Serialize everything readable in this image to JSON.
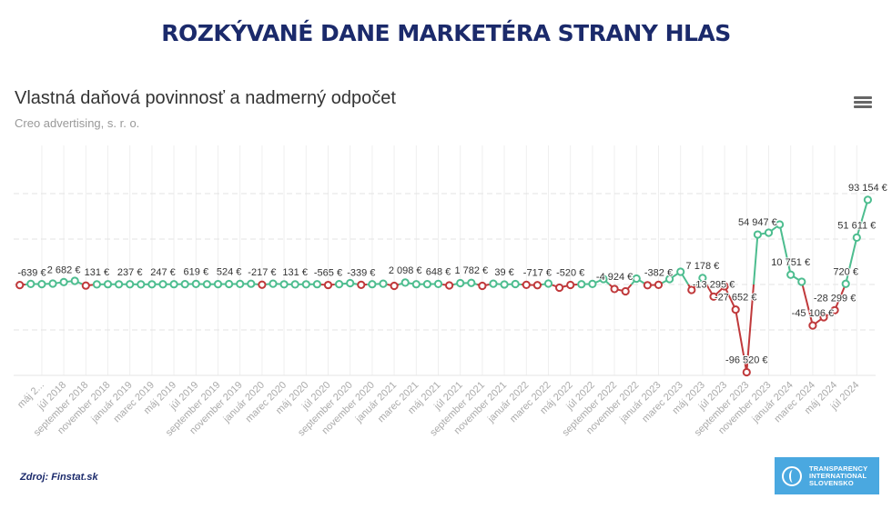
{
  "headline": "ROZKÝVANÉ DANE MARKETÉRA STRANY HLAS",
  "source": "Zdroj: Finstat.sk",
  "logo": {
    "line1": "TRANSPARENCY",
    "line2": "INTERNATIONAL",
    "line3": "SLOVENSKO"
  },
  "menu_icon": "hamburger-menu-icon",
  "colors": {
    "positive": "#4dbd8f",
    "negative": "#c0393b",
    "headline": "#1b2a6b",
    "logo_bg": "#4aa8e0"
  },
  "chart_data": {
    "type": "line",
    "title": "Vlastná daňová povinnosť a nadmerný odpočet",
    "subtitle": "Creo advertising, s. r. o.",
    "ylim": [
      -100000,
      100000
    ],
    "y_gridlines": [
      -100000,
      -50000,
      0,
      50000,
      100000
    ],
    "grid": true,
    "legend": "none",
    "zones": {
      "below_zero": "negative",
      "above_zero": "positive"
    },
    "tick_labels": [
      "máj 2...",
      "júl 2018",
      "september 2018",
      "november 2018",
      "január 2019",
      "marec 2019",
      "máj 2019",
      "júl 2019",
      "september 2019",
      "november 2019",
      "január 2020",
      "marec 2020",
      "máj 2020",
      "júl 2020",
      "september 2020",
      "november 2020",
      "január 2021",
      "marec 2021",
      "máj 2021",
      "júl 2021",
      "september 2021",
      "november 2021",
      "január 2022",
      "marec 2022",
      "máj 2022",
      "júl 2022",
      "september 2022",
      "november 2022",
      "január 2023",
      "marec 2023",
      "máj 2023",
      "júl 2023",
      "september 2023",
      "november 2023",
      "január 2024",
      "marec 2024",
      "máj 2024",
      "júl 2024"
    ],
    "values": [
      -639,
      600,
      400,
      1000,
      2682,
      4000,
      -1200,
      131,
      300,
      200,
      237,
      150,
      200,
      247,
      300,
      400,
      619,
      300,
      400,
      524,
      600,
      800,
      -217,
      900,
      200,
      131,
      200,
      300,
      -565,
      400,
      1500,
      -339,
      300,
      900,
      -1500,
      2098,
      300,
      400,
      648,
      -1000,
      1500,
      1782,
      -1500,
      900,
      39,
      500,
      -400,
      -717,
      1000,
      -3500,
      -520,
      300,
      600,
      6000,
      -4924,
      -7500,
      6500,
      -800,
      -382,
      6000,
      14000,
      -6000,
      7178,
      -13295,
      -2000,
      -27652,
      -96520,
      54947,
      57000,
      66000,
      10751,
      3000,
      -45106,
      -36000,
      -28299,
      720,
      51611,
      93154
    ],
    "data_labels": {
      "0": "-639 €",
      "4": "2 682 €",
      "7": "131 €",
      "10": "237 €",
      "13": "247 €",
      "16": "619 €",
      "19": "524 €",
      "22": "-217 €",
      "25": "131 €",
      "28": "-565 €",
      "31": "-339 €",
      "35": "2 098 €",
      "38": "648 €",
      "41": "1 782 €",
      "44": "39 €",
      "47": "-717 €",
      "50": "-520 €",
      "54": "-4 924 €",
      "58": "-382 €",
      "62": "7 178 €",
      "63": "-13 295 €",
      "65": "-27 652 €",
      "66": "-96 520 €",
      "67": "54 947 €",
      "70": "10 751 €",
      "72": "-45 106 €",
      "74": "-28 299 €",
      "75": "720 €",
      "76": "51 611 €",
      "77": "93 154 €"
    }
  }
}
